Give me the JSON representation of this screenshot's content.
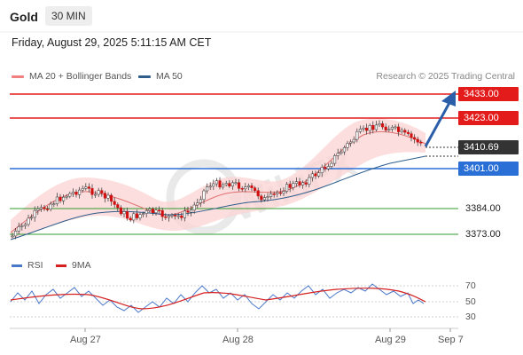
{
  "header": {
    "instrument": "Gold",
    "timeframe": "30 MIN",
    "datetime": "Friday, August 29, 2025 5:11:15 AM CET"
  },
  "legend": {
    "items": [
      {
        "label": "MA 20 + Bollinger Bands",
        "color": "#f08080"
      },
      {
        "label": "MA 50",
        "color": "#2f5d8c"
      }
    ],
    "copyright": "Research © 2025 Trading Central"
  },
  "levels": [
    {
      "label": "3433.00",
      "color": "#e31b1b",
      "style": "tag"
    },
    {
      "label": "3423.00",
      "color": "#e31b1b",
      "style": "tag"
    },
    {
      "label": "3410.69",
      "color": "#333333",
      "style": "tag"
    },
    {
      "label": "3401.00",
      "color": "#2a6fd6",
      "style": "tag"
    },
    {
      "label": "3384.00",
      "color": "#2e9d2e",
      "style": "plain"
    },
    {
      "label": "3373.00",
      "color": "#2e9d2e",
      "style": "plain"
    }
  ],
  "rsi": {
    "legend": [
      {
        "label": "RSI",
        "color": "#4a78c8"
      },
      {
        "label": "9MA",
        "color": "#d62020"
      }
    ],
    "levels": [
      "70",
      "50",
      "30"
    ]
  },
  "xaxis": {
    "labels": [
      "Aug 27",
      "Aug 28",
      "Aug 29",
      "Sep 7"
    ]
  },
  "colors": {
    "up_candle": "#ffffff",
    "down_candle": "#d01010",
    "arrow": "#2b5ea8",
    "band_fill": "#fbd3d3"
  }
}
